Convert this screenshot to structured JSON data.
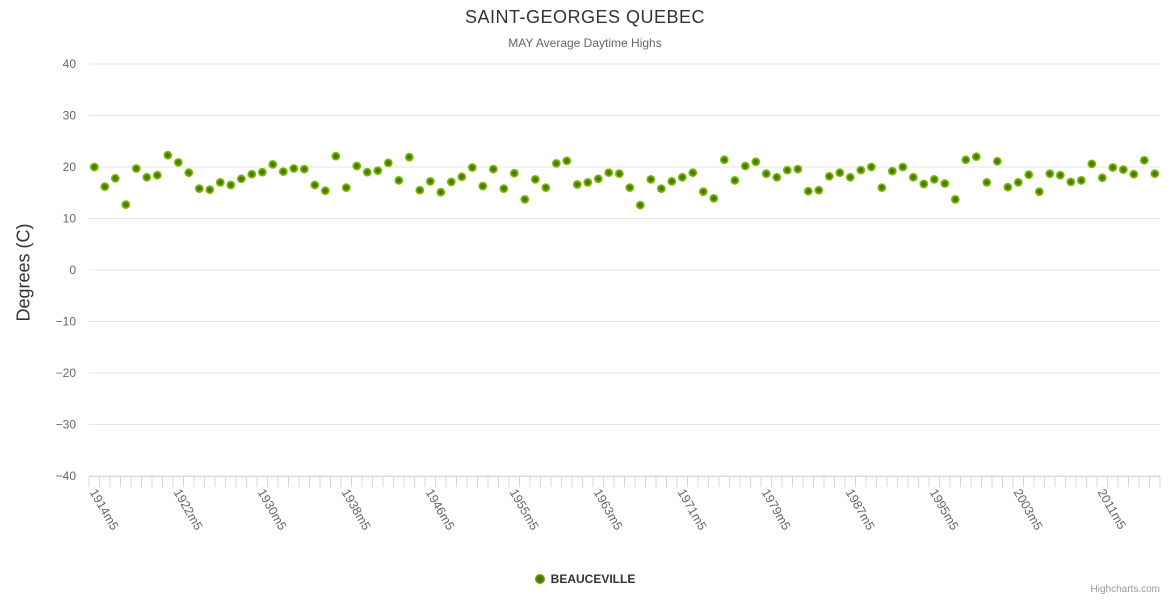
{
  "header": {
    "title": "SAINT-GEORGES QUEBEC",
    "subtitle": "MAY Average Daytime Highs"
  },
  "credits_label": "Highcharts.com",
  "legend": {
    "items": [
      {
        "label": "BEAUCEVILLE",
        "color": "#77b308"
      }
    ]
  },
  "colors": {
    "marker_outer": "#7ab608",
    "marker_inner": "#3d6c03",
    "gridline": "#e6e6e6",
    "axis_line": "#ccd6eb",
    "tick_label": "#666666",
    "title_text": "#333333"
  },
  "chart_data": {
    "type": "scatter",
    "title": "SAINT-GEORGES QUEBEC",
    "subtitle": "MAY Average Daytime Highs",
    "xlabel": "",
    "ylabel": "Degrees (C)",
    "ylim": [
      -40,
      40
    ],
    "y_ticks": [
      40,
      30,
      20,
      10,
      0,
      -10,
      -20,
      -30,
      -40
    ],
    "grid": "horizontal",
    "legend_position": "bottom-center",
    "x_tick_labels": [
      "1914m5",
      "1922m5",
      "1930m5",
      "1938m5",
      "1946m5",
      "1955m5",
      "1963m5",
      "1971m5",
      "1979m5",
      "1987m5",
      "1995m5",
      "2003m5",
      "2011m5"
    ],
    "x_tick_label_every": 8,
    "x_label_rotation_deg": 60,
    "series": [
      {
        "name": "BEAUCEVILLE",
        "color": "#7ab608",
        "values": [
          20.0,
          16.2,
          17.8,
          12.7,
          19.7,
          18.0,
          18.4,
          22.3,
          20.9,
          18.9,
          15.8,
          15.6,
          17.0,
          16.5,
          17.7,
          18.6,
          19.0,
          20.5,
          19.1,
          19.7,
          19.6,
          16.5,
          15.4,
          22.1,
          16.0,
          20.2,
          19.0,
          19.3,
          20.8,
          17.4,
          21.9,
          15.5,
          17.2,
          15.1,
          17.1,
          18.1,
          19.9,
          16.3,
          19.6,
          15.8,
          18.8,
          13.7,
          17.6,
          16.0,
          20.7,
          21.2,
          16.6,
          17.0,
          17.7,
          18.9,
          18.7,
          16.0,
          12.6,
          17.6,
          15.8,
          17.2,
          18.0,
          18.9,
          15.2,
          13.9,
          21.4,
          17.4,
          20.2,
          21.0,
          18.7,
          18.0,
          19.4,
          19.6,
          15.3,
          15.5,
          18.2,
          18.9,
          18.0,
          19.4,
          20.0,
          16.0,
          19.2,
          20.0,
          18.0,
          16.7,
          17.6,
          16.8,
          13.7,
          21.4,
          22.0,
          17.0,
          21.1,
          16.1,
          17.0,
          18.5,
          15.2,
          18.7,
          18.4,
          17.1,
          17.4,
          20.6,
          17.9,
          19.9,
          19.5,
          18.6,
          21.3,
          18.7
        ]
      }
    ]
  }
}
